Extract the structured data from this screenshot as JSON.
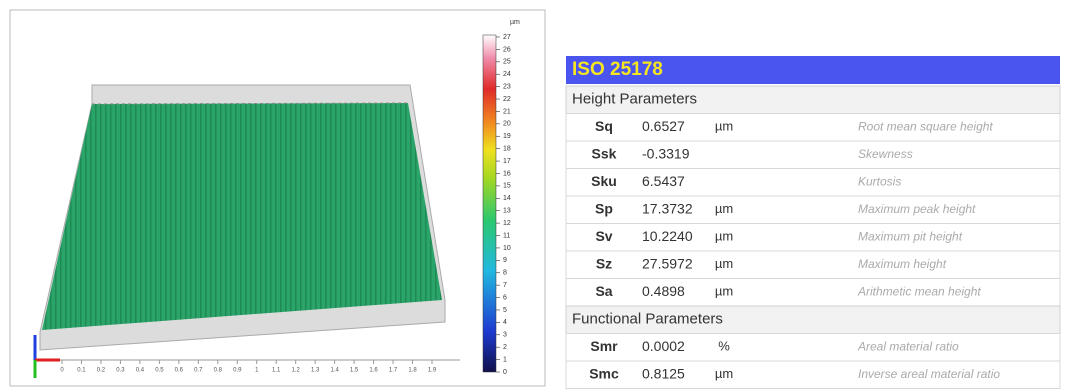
{
  "surface_view": {
    "colorbar": {
      "unit": "µm",
      "ticks": [
        0,
        1,
        2,
        3,
        4,
        5,
        6,
        7,
        8,
        9,
        10,
        11,
        12,
        13,
        14,
        15,
        16,
        17,
        18,
        19,
        20,
        21,
        22,
        23,
        24,
        25,
        26,
        27
      ]
    },
    "x_axis_labels": [
      "0",
      "0.1",
      "0.2",
      "0.3",
      "0.4",
      "0.5",
      "0.6",
      "0.7",
      "0.8",
      "0.9",
      "1",
      "1.1",
      "1.2",
      "1.3",
      "1.4",
      "1.5",
      "1.6",
      "1.7",
      "1.8",
      "1.9"
    ]
  },
  "table": {
    "title": "ISO 25178",
    "sections": [
      {
        "heading": "Height Parameters",
        "rows": [
          [
            "Sq",
            "0.6527",
            "µm",
            "Root mean square height"
          ],
          [
            "Ssk",
            "-0.3319",
            "",
            "Skewness"
          ],
          [
            "Sku",
            "6.5437",
            "",
            "Kurtosis"
          ],
          [
            "Sp",
            "17.3732",
            "µm",
            "Maximum peak height"
          ],
          [
            "Sv",
            "10.2240",
            "µm",
            "Maximum pit height"
          ],
          [
            "Sz",
            "27.5972",
            "µm",
            "Maximum height"
          ],
          [
            "Sa",
            "0.4898",
            "µm",
            "Arithmetic mean height"
          ]
        ]
      },
      {
        "heading": "Functional Parameters",
        "rows": [
          [
            "Smr",
            "0.0002",
            "%",
            "Areal material ratio"
          ],
          [
            "Smc",
            "0.8125",
            "µm",
            "Inverse areal material ratio"
          ]
        ]
      }
    ]
  }
}
